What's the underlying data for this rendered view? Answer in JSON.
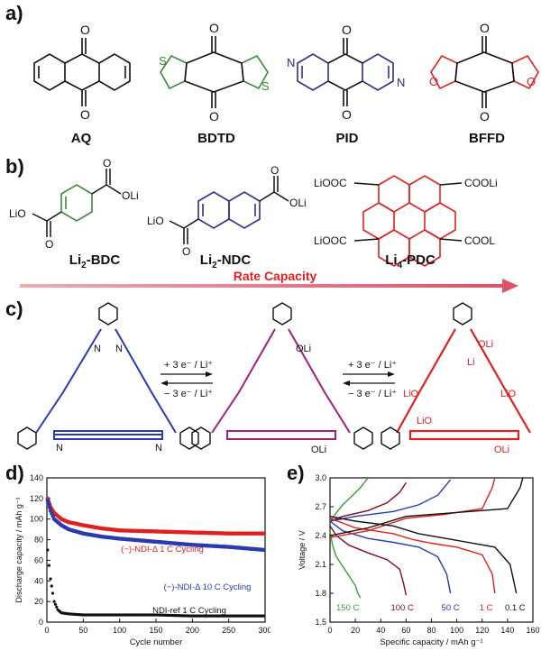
{
  "panels": {
    "a": {
      "label": "a)",
      "molecules": [
        "AQ",
        "BDTD",
        "PID",
        "BFFD"
      ]
    },
    "b": {
      "label": "b)",
      "molecules": [
        {
          "name": "Li",
          "sub": "2",
          "rest": "-BDC"
        },
        {
          "name": "Li",
          "sub": "2",
          "rest": "-NDC"
        },
        {
          "name": "Li",
          "sub": "4",
          "rest": "-PDC"
        }
      ],
      "substituents": {
        "oli": "OLi",
        "lio": "LiO",
        "liooc": "LiOOC",
        "cooli": "COOLi",
        "cool": "COOL"
      },
      "arrow_text": "Rate Capacity"
    },
    "c": {
      "label": "c)",
      "fwd1": "+ 3 e⁻ / Li⁺",
      "rev1": "− 3 e⁻ / Li⁺",
      "fwd2": "+ 3 e⁻ / Li⁺",
      "rev2": "− 3 e⁻ / Li⁺"
    },
    "d": {
      "label": "d)"
    },
    "e": {
      "label": "e)"
    }
  },
  "colors": {
    "green": "#3a8a3a",
    "navy": "#2a2e8c",
    "red": "#e02020",
    "magenta": "#a0207a",
    "blue": "#2a3bb0",
    "black": "#111111",
    "arrow": "#e07a88"
  },
  "chart_data": [
    {
      "type": "scatter",
      "xlabel": "Cycle number",
      "ylabel": "Discharge capacity / mAh g⁻¹",
      "xlim": [
        0,
        300
      ],
      "ylim": [
        0,
        140
      ],
      "xticks": [
        0,
        50,
        100,
        150,
        200,
        250,
        300
      ],
      "yticks": [
        0,
        20,
        40,
        60,
        80,
        100,
        120,
        140
      ],
      "series": [
        {
          "name": "(−)-NDI-Δ 1 C Cycling",
          "color": "#e02020",
          "x": [
            1,
            5,
            10,
            20,
            30,
            50,
            75,
            100,
            150,
            200,
            250,
            300
          ],
          "y": [
            120,
            112,
            106,
            100,
            97,
            94,
            91,
            89,
            88,
            87,
            86,
            86
          ]
        },
        {
          "name": "(−)-NDI-Δ 10 C Cycling",
          "color": "#2a3bb0",
          "x": [
            1,
            5,
            10,
            20,
            30,
            50,
            75,
            100,
            150,
            200,
            250,
            300
          ],
          "y": [
            118,
            108,
            100,
            94,
            90,
            86,
            83,
            81,
            78,
            75,
            73,
            70
          ]
        },
        {
          "name": "NDI-ref 1 C Cycling",
          "color": "#111111",
          "x": [
            1,
            3,
            5,
            8,
            10,
            15,
            20,
            30,
            50,
            100,
            150,
            200,
            250,
            300
          ],
          "y": [
            70,
            55,
            42,
            28,
            20,
            12,
            9,
            8,
            7,
            7,
            7,
            6,
            6,
            6
          ]
        }
      ]
    },
    {
      "type": "line",
      "xlabel": "Specific capacity / mAh g⁻¹",
      "ylabel": "Voltage / V",
      "xlim": [
        0,
        160
      ],
      "ylim": [
        1.5,
        3.0
      ],
      "xticks": [
        0,
        20,
        40,
        60,
        80,
        100,
        120,
        140,
        160
      ],
      "yticks": [
        1.5,
        1.8,
        2.1,
        2.4,
        2.7,
        3.0
      ],
      "series": [
        {
          "name": "150 C",
          "color": "#3a9a3a",
          "x": [
            0,
            2,
            5,
            10,
            15,
            20,
            22,
            24
          ],
          "y": [
            2.45,
            2.3,
            2.18,
            2.08,
            1.98,
            1.88,
            1.8,
            1.75
          ],
          "x2": [
            0,
            4,
            10,
            18,
            24,
            30
          ],
          "y2": [
            2.55,
            2.62,
            2.72,
            2.82,
            2.9,
            3.0
          ]
        },
        {
          "name": "100 C",
          "color": "#7a1020",
          "x": [
            0,
            5,
            15,
            30,
            45,
            55,
            58,
            60
          ],
          "y": [
            2.5,
            2.4,
            2.3,
            2.22,
            2.15,
            2.05,
            1.9,
            1.78
          ],
          "x2": [
            0,
            10,
            30,
            45,
            55,
            60
          ],
          "y2": [
            2.55,
            2.6,
            2.66,
            2.74,
            2.85,
            2.95
          ]
        },
        {
          "name": "50 C",
          "color": "#2a3bb0",
          "x": [
            0,
            10,
            30,
            50,
            70,
            85,
            92,
            95
          ],
          "y": [
            2.55,
            2.45,
            2.37,
            2.33,
            2.28,
            2.18,
            2.0,
            1.8
          ],
          "x2": [
            0,
            20,
            50,
            70,
            85,
            95
          ],
          "y2": [
            2.55,
            2.6,
            2.65,
            2.72,
            2.82,
            2.98
          ]
        },
        {
          "name": "1 C",
          "color": "#e02020",
          "x": [
            0,
            20,
            50,
            65,
            80,
            100,
            120,
            128,
            130
          ],
          "y": [
            2.58,
            2.48,
            2.42,
            2.36,
            2.32,
            2.28,
            2.2,
            2.0,
            1.8
          ],
          "x2": [
            0,
            30,
            60,
            90,
            120,
            128,
            130
          ],
          "y2": [
            2.38,
            2.45,
            2.58,
            2.62,
            2.68,
            2.9,
            3.0
          ]
        },
        {
          "name": "0.1 C",
          "color": "#111111",
          "x": [
            0,
            20,
            50,
            70,
            100,
            130,
            142,
            147
          ],
          "y": [
            2.6,
            2.55,
            2.5,
            2.42,
            2.35,
            2.28,
            2.1,
            1.8
          ],
          "x2": [
            0,
            30,
            60,
            100,
            140,
            150,
            152
          ],
          "y2": [
            2.4,
            2.48,
            2.6,
            2.64,
            2.68,
            2.9,
            3.0
          ]
        }
      ]
    }
  ]
}
